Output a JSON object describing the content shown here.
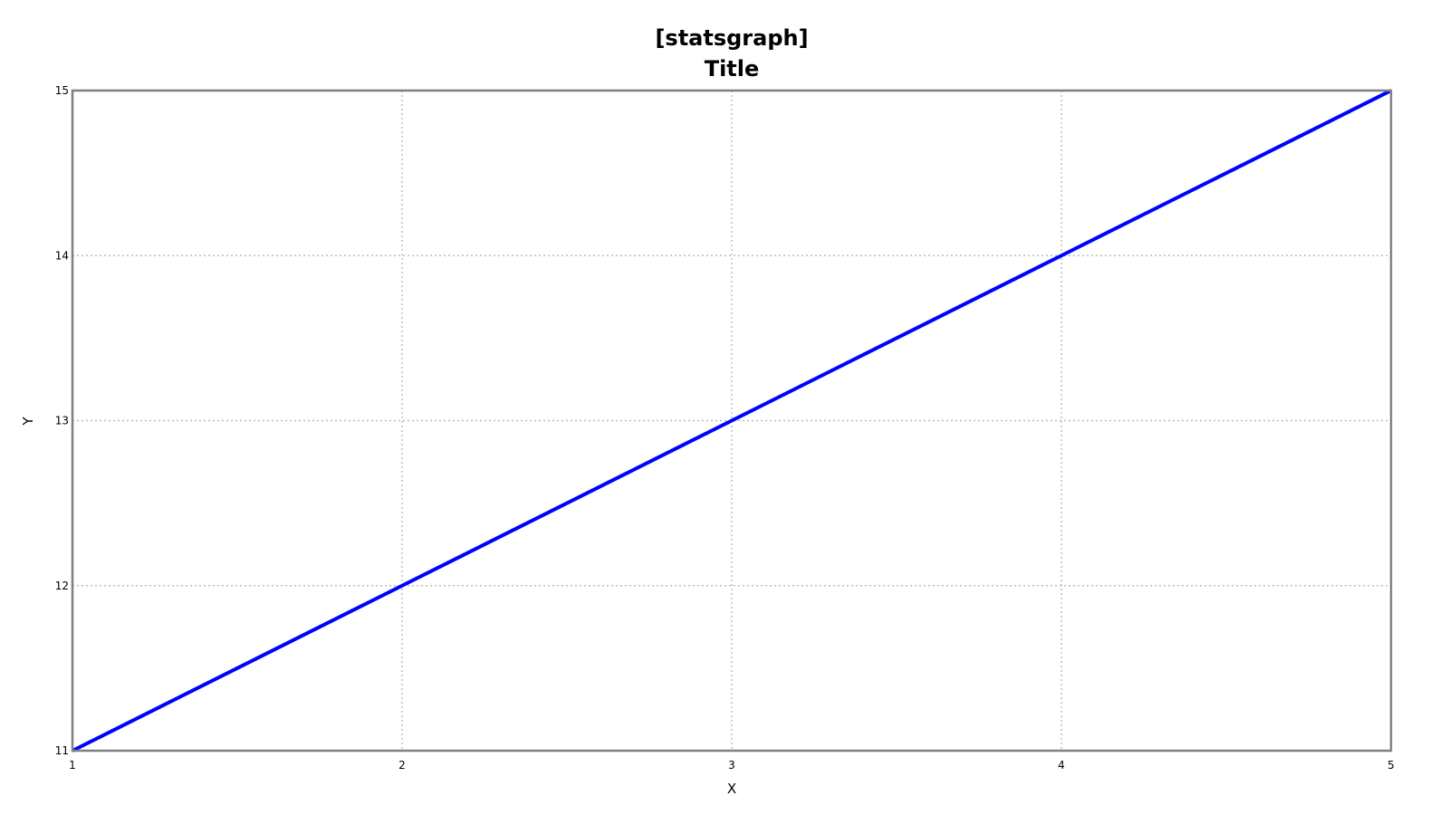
{
  "chart_data": {
    "type": "line",
    "title_lines": [
      "[statsgraph]",
      "Title"
    ],
    "xlabel": "X",
    "ylabel": "Y",
    "x": [
      1,
      2,
      3,
      4,
      5
    ],
    "series": [
      {
        "values": [
          11,
          12,
          13,
          14,
          15
        ],
        "color": "#0000ff"
      }
    ],
    "xlim": [
      1,
      5
    ],
    "ylim": [
      11,
      15
    ],
    "xticks": [
      1,
      2,
      3,
      4,
      5
    ],
    "yticks": [
      11,
      12,
      13,
      14,
      15
    ],
    "grid": true,
    "colors": {
      "frame": "#808080",
      "grid": "#b0b0b0",
      "line": "#0000ff"
    }
  }
}
